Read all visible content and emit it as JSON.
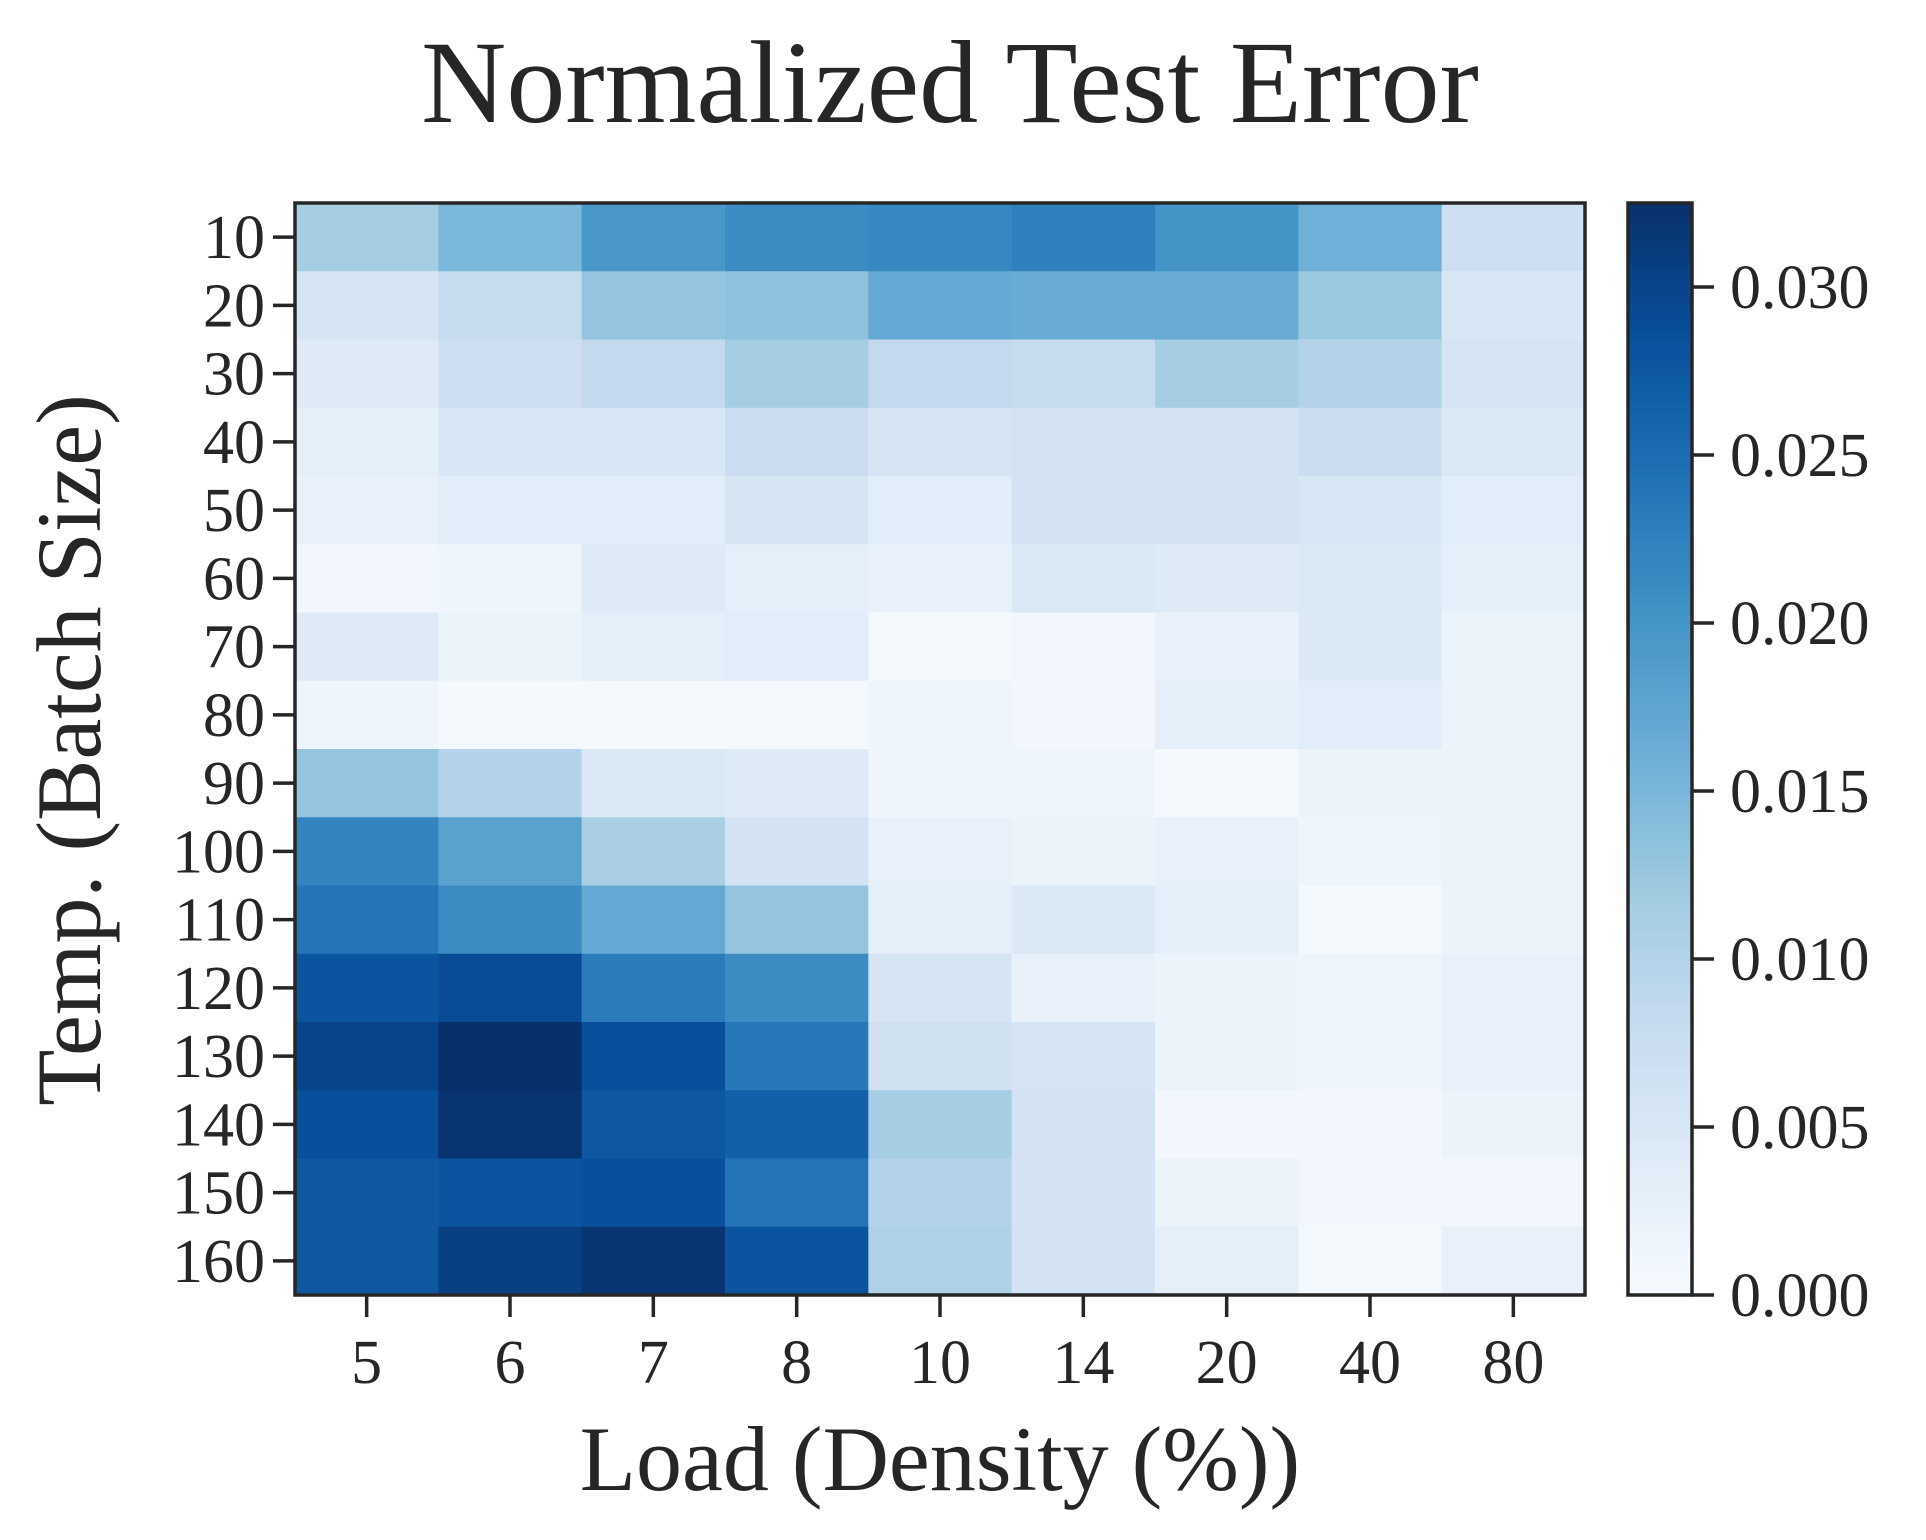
{
  "chart_data": {
    "type": "heatmap",
    "title": "Normalized Test Error",
    "xlabel": "Load (Density (%))",
    "ylabel": "Temp. (Batch Size)",
    "x_categories": [
      "5",
      "6",
      "7",
      "8",
      "10",
      "14",
      "20",
      "40",
      "80"
    ],
    "y_categories": [
      "10",
      "20",
      "30",
      "40",
      "50",
      "60",
      "70",
      "80",
      "90",
      "100",
      "110",
      "120",
      "130",
      "140",
      "150",
      "160"
    ],
    "values": [
      [
        0.0115,
        0.015,
        0.0195,
        0.021,
        0.0215,
        0.0225,
        0.02,
        0.016,
        0.007
      ],
      [
        0.0055,
        0.008,
        0.013,
        0.0135,
        0.017,
        0.0165,
        0.0165,
        0.0125,
        0.005
      ],
      [
        0.004,
        0.007,
        0.0085,
        0.0115,
        0.0085,
        0.008,
        0.0115,
        0.01,
        0.0055
      ],
      [
        0.003,
        0.005,
        0.005,
        0.0075,
        0.0055,
        0.006,
        0.006,
        0.0075,
        0.0045
      ],
      [
        0.0025,
        0.0035,
        0.0035,
        0.0055,
        0.0035,
        0.006,
        0.006,
        0.005,
        0.0035
      ],
      [
        0.001,
        0.0015,
        0.004,
        0.003,
        0.0025,
        0.0045,
        0.004,
        0.0045,
        0.003
      ],
      [
        0.004,
        0.002,
        0.003,
        0.0035,
        0.0005,
        0.001,
        0.0025,
        0.0045,
        0.002
      ],
      [
        0.0015,
        0.0005,
        0.0005,
        0.0005,
        0.0015,
        0.001,
        0.003,
        0.0035,
        0.002
      ],
      [
        0.013,
        0.01,
        0.0045,
        0.004,
        0.0015,
        0.0015,
        0.0005,
        0.002,
        0.002
      ],
      [
        0.022,
        0.018,
        0.011,
        0.006,
        0.0025,
        0.002,
        0.0025,
        0.0015,
        0.002
      ],
      [
        0.024,
        0.021,
        0.017,
        0.013,
        0.003,
        0.0045,
        0.003,
        0.0005,
        0.002
      ],
      [
        0.028,
        0.029,
        0.023,
        0.021,
        0.0055,
        0.0025,
        0.002,
        0.0015,
        0.0025
      ],
      [
        0.03,
        0.0325,
        0.0285,
        0.0235,
        0.0065,
        0.0055,
        0.002,
        0.0015,
        0.0025
      ],
      [
        0.0285,
        0.032,
        0.0275,
        0.0265,
        0.0115,
        0.006,
        0.001,
        0.001,
        0.002
      ],
      [
        0.0275,
        0.028,
        0.0285,
        0.024,
        0.01,
        0.006,
        0.002,
        0.001,
        0.001
      ],
      [
        0.0275,
        0.0305,
        0.032,
        0.028,
        0.0105,
        0.006,
        0.003,
        0.0005,
        0.0025
      ]
    ],
    "colorbar": {
      "colormap": "Blues",
      "range": [
        0.0,
        0.0325
      ],
      "ticks": [
        "0.000",
        "0.005",
        "0.010",
        "0.015",
        "0.020",
        "0.025",
        "0.030"
      ],
      "tick_values": [
        0.0,
        0.005,
        0.01,
        0.015,
        0.02,
        0.025,
        0.03
      ]
    },
    "grid": false
  }
}
